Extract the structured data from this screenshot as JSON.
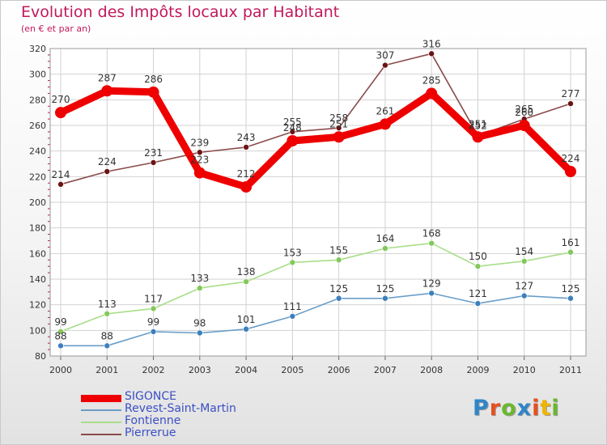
{
  "title": "Evolution des Impôts locaux par Habitant",
  "subtitle": "(en € et par an)",
  "logo": {
    "letters": [
      "P",
      "r",
      "o",
      "x",
      "i",
      "t",
      "i"
    ],
    "colors": [
      "#2e86c8",
      "#e8501e",
      "#6ab82e",
      "#2e86c8",
      "#e8501e",
      "#f0b400",
      "#6ab82e"
    ]
  },
  "chart_data": {
    "type": "line",
    "x": [
      "2000",
      "2001",
      "2002",
      "2003",
      "2004",
      "2005",
      "2006",
      "2007",
      "2008",
      "2009",
      "2010",
      "2011"
    ],
    "ylim": [
      80,
      320
    ],
    "yticks": [
      80,
      100,
      120,
      140,
      160,
      180,
      200,
      220,
      240,
      260,
      280,
      300,
      320
    ],
    "grid": true,
    "legend_position": "bottom-left",
    "series": [
      {
        "name": "SIGONCE",
        "values": [
          270,
          287,
          286,
          223,
          212,
          248,
          251,
          261,
          285,
          251,
          260,
          224
        ],
        "labels": [
          "270",
          "287",
          "286",
          "223",
          "212",
          "248",
          "251",
          "261",
          "285",
          "251",
          "260",
          "224"
        ],
        "color": "#ee0000",
        "marker": "#ee0000",
        "width": 9,
        "radius": 7
      },
      {
        "name": "Revest-Saint-Martin",
        "values": [
          88,
          88,
          99,
          98,
          101,
          111,
          125,
          125,
          129,
          121,
          127,
          125
        ],
        "labels": [
          "88",
          "88",
          "99",
          "98",
          "101",
          "111",
          "125",
          "125",
          "129",
          "121",
          "127",
          "125"
        ],
        "color": "#6a9ec8",
        "marker": "#3d7fbf",
        "width": 1.6,
        "radius": 3.5
      },
      {
        "name": "Fontienne",
        "values": [
          99,
          113,
          117,
          133,
          138,
          153,
          155,
          164,
          168,
          150,
          154,
          161
        ],
        "labels": [
          "99",
          "113",
          "117",
          "133",
          "138",
          "153",
          "155",
          "164",
          "168",
          "150",
          "154",
          "161"
        ],
        "color": "#a8de88",
        "marker": "#82c85a",
        "width": 1.6,
        "radius": 3.5
      },
      {
        "name": "Pierrerue",
        "values": [
          214,
          224,
          231,
          239,
          243,
          255,
          258,
          307,
          316,
          252,
          265,
          277
        ],
        "labels": [
          "214",
          "224",
          "231",
          "239",
          "243",
          "255",
          "258",
          "307",
          "316",
          "252",
          "265",
          "277"
        ],
        "color": "#8a4a4a",
        "marker": "#6b1414",
        "width": 1.6,
        "radius": 3.5
      }
    ]
  }
}
